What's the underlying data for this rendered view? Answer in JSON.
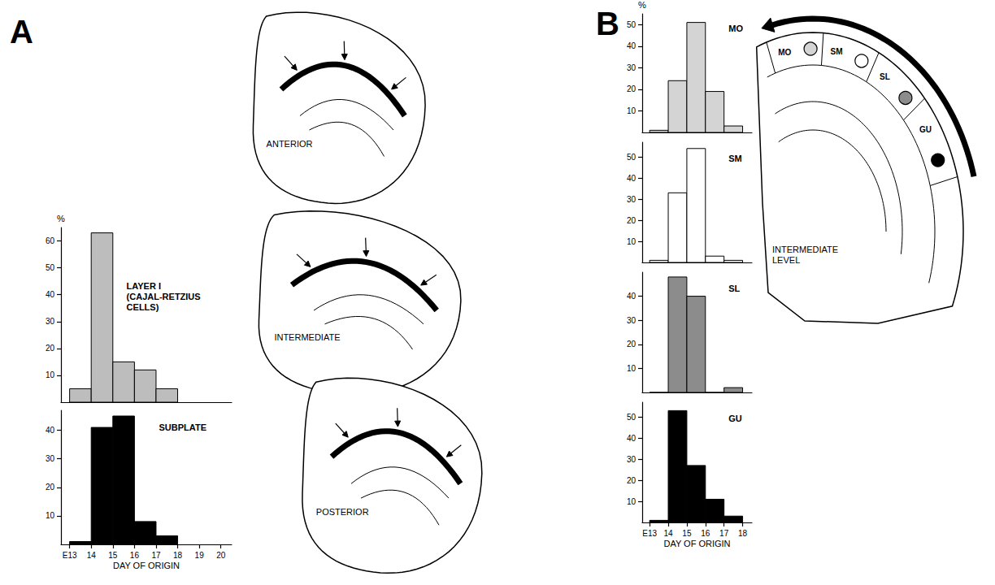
{
  "panels": [
    "A",
    "B"
  ],
  "diagrams": {
    "A": {
      "sections": [
        "ANTERIOR",
        "INTERMEDIATE",
        "POSTERIOR"
      ]
    },
    "B": {
      "section": "INTERMEDIATE LEVEL",
      "regions": [
        "MO",
        "SM",
        "SL",
        "GU"
      ]
    }
  },
  "chart_data": [
    {
      "type": "histogram",
      "title": "LAYER I (CAJAL-RETZIUS CELLS)",
      "ylabel": "%",
      "bins": [
        13,
        14,
        15,
        16,
        17,
        18
      ],
      "counts": [
        5,
        63,
        15,
        12,
        5
      ],
      "color": "#bdbdbd",
      "xlim": [
        12.6,
        20.5
      ],
      "ylim": [
        0,
        65
      ],
      "yticks": [
        10,
        20,
        30,
        40,
        50,
        60
      ],
      "tick_labels": "y",
      "grid": false
    },
    {
      "type": "histogram",
      "title": "SUBPLATE",
      "xlabel": "DAY OF ORIGIN",
      "bins": [
        13,
        14,
        15,
        16,
        17,
        18
      ],
      "counts": [
        1,
        41,
        45,
        8,
        3
      ],
      "color": "#000000",
      "xlim": [
        12.6,
        20.5
      ],
      "xticks": [
        {
          "value": 13,
          "label": "E13"
        },
        14,
        15,
        16,
        17,
        18,
        19,
        20
      ],
      "ylim": [
        0,
        47
      ],
      "yticks": [
        10,
        20,
        30,
        40
      ],
      "grid": false
    },
    {
      "type": "histogram",
      "title": "MO",
      "ylabel": "%",
      "bins": [
        13,
        14,
        15,
        16,
        17,
        18
      ],
      "counts": [
        1,
        24,
        51,
        19,
        3
      ],
      "color": "#d4d4d4",
      "xlim": [
        12.6,
        18.5
      ],
      "ylim": [
        0,
        55
      ],
      "yticks": [
        10,
        20,
        30,
        40,
        50
      ],
      "tick_labels": "y",
      "grid": false
    },
    {
      "type": "histogram",
      "title": "SM",
      "bins": [
        13,
        14,
        15,
        16,
        17,
        18
      ],
      "counts": [
        1,
        33,
        54,
        3,
        1
      ],
      "color": "#ffffff",
      "xlim": [
        12.6,
        18.5
      ],
      "ylim": [
        0,
        57
      ],
      "yticks": [
        10,
        20,
        30,
        40,
        50
      ],
      "tick_labels": "y",
      "grid": false
    },
    {
      "type": "histogram",
      "title": "SL",
      "bins": [
        13,
        14,
        15,
        16,
        17,
        18
      ],
      "counts": [
        0,
        48,
        40,
        0,
        2
      ],
      "color": "#8c8c8c",
      "xlim": [
        12.6,
        18.5
      ],
      "ylim": [
        0,
        50
      ],
      "yticks": [
        10,
        20,
        30,
        40
      ],
      "tick_labels": "y",
      "grid": false
    },
    {
      "type": "histogram",
      "title": "GU",
      "xlabel": "DAY OF ORIGIN",
      "bins": [
        13,
        14,
        15,
        16,
        17,
        18
      ],
      "counts": [
        1,
        53,
        27,
        11,
        3
      ],
      "color": "#000000",
      "xlim": [
        12.6,
        18.5
      ],
      "xticks": [
        {
          "value": 13,
          "label": "E13"
        },
        14,
        15,
        16,
        17,
        18
      ],
      "ylim": [
        0,
        57
      ],
      "yticks": [
        10,
        20,
        30,
        40,
        50
      ],
      "grid": false
    }
  ]
}
